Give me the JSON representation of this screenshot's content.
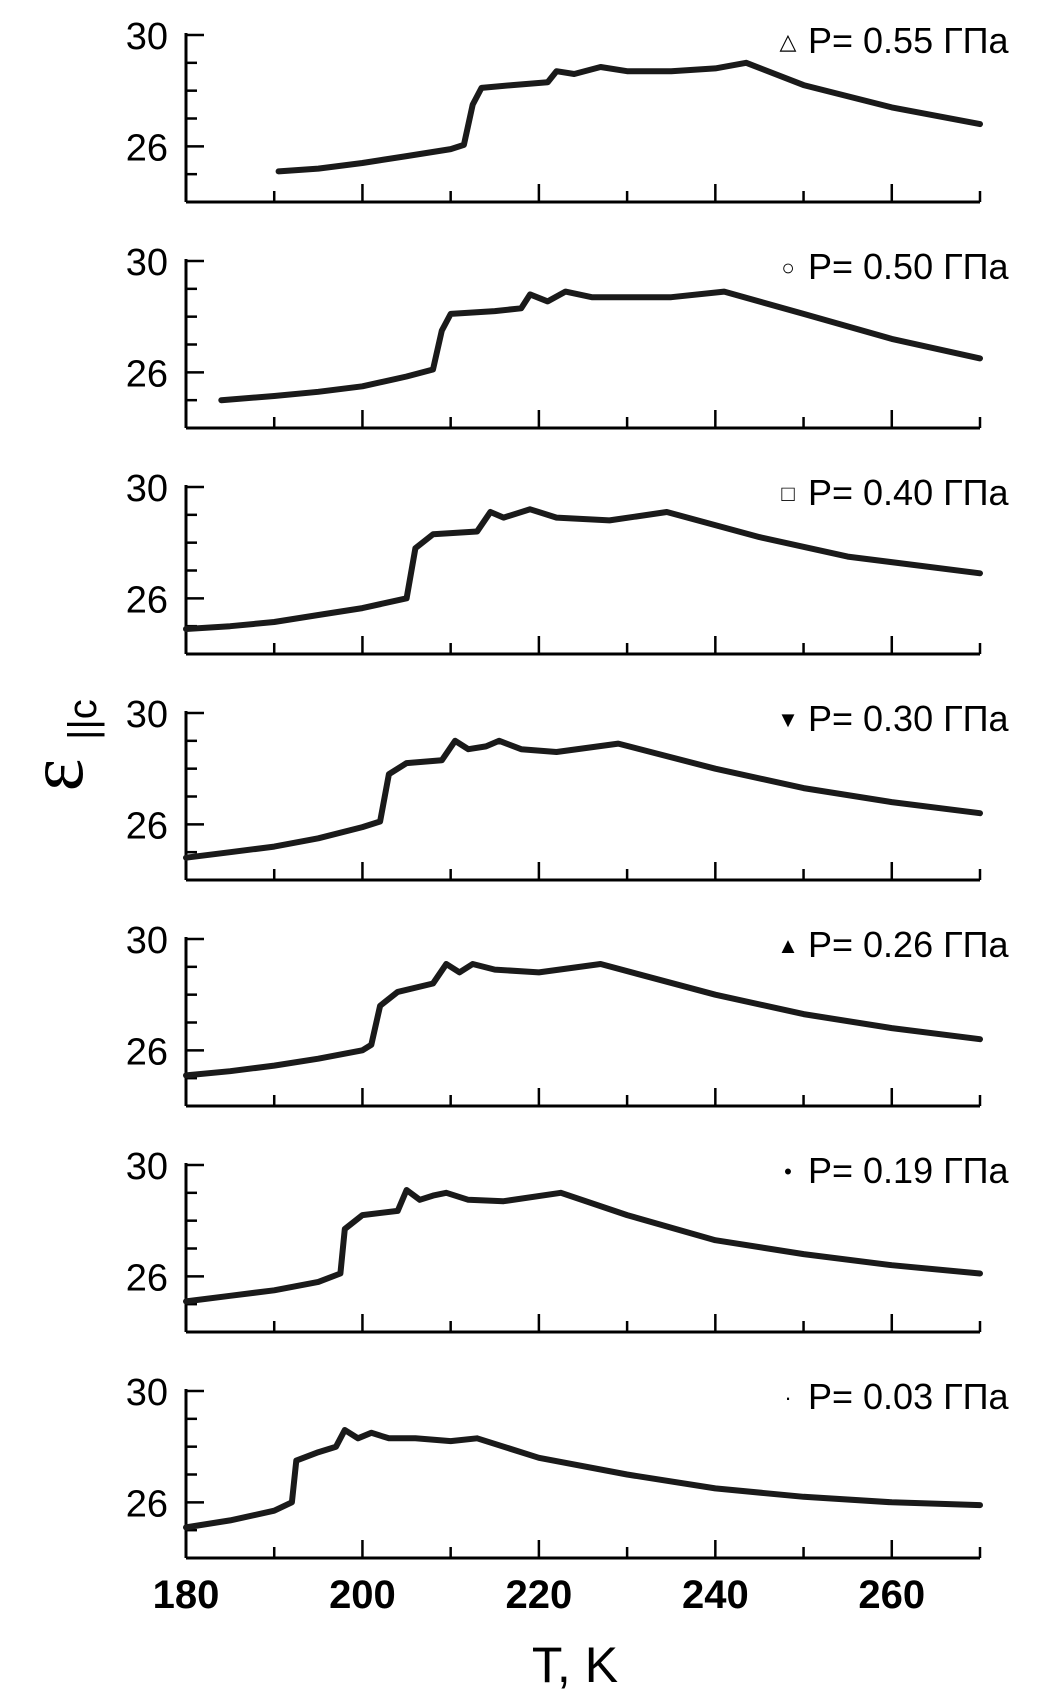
{
  "chart_data": {
    "type": "line",
    "xlabel": "T, K",
    "ylabel": "ε",
    "ylabel_subscript": "||c",
    "xlim": [
      180,
      270
    ],
    "ylim": [
      24,
      30
    ],
    "x_ticks": [
      180,
      200,
      220,
      240,
      260
    ],
    "y_ticks": [
      26,
      30
    ],
    "grid": false,
    "legend_placement": "top-right of each panel",
    "panels": [
      {
        "name": "P= 0.55 ГПа",
        "marker": "△",
        "points": [
          [
            190.5,
            25.1
          ],
          [
            195,
            25.2
          ],
          [
            200,
            25.4
          ],
          [
            205,
            25.65
          ],
          [
            210,
            25.9
          ],
          [
            211.5,
            26.05
          ],
          [
            212.5,
            27.5
          ],
          [
            213.5,
            28.1
          ],
          [
            217,
            28.2
          ],
          [
            221,
            28.3
          ],
          [
            222,
            28.7
          ],
          [
            224,
            28.6
          ],
          [
            227,
            28.85
          ],
          [
            230,
            28.7
          ],
          [
            235,
            28.7
          ],
          [
            240,
            28.8
          ],
          [
            243.5,
            29.0
          ],
          [
            250,
            28.2
          ],
          [
            260,
            27.4
          ],
          [
            270,
            26.8
          ]
        ]
      },
      {
        "name": "P= 0.50 ГПа",
        "marker": "○",
        "points": [
          [
            184,
            25.0
          ],
          [
            190,
            25.15
          ],
          [
            195,
            25.3
          ],
          [
            200,
            25.5
          ],
          [
            205,
            25.85
          ],
          [
            208,
            26.1
          ],
          [
            209,
            27.5
          ],
          [
            210,
            28.1
          ],
          [
            215,
            28.2
          ],
          [
            218,
            28.3
          ],
          [
            219,
            28.8
          ],
          [
            221,
            28.55
          ],
          [
            223,
            28.9
          ],
          [
            226,
            28.7
          ],
          [
            230,
            28.7
          ],
          [
            235,
            28.7
          ],
          [
            241,
            28.9
          ],
          [
            250,
            28.1
          ],
          [
            260,
            27.2
          ],
          [
            270,
            26.5
          ]
        ]
      },
      {
        "name": "P= 0.40 ГПа",
        "marker": "□",
        "points": [
          [
            180,
            24.9
          ],
          [
            185,
            25.0
          ],
          [
            190,
            25.15
          ],
          [
            195,
            25.4
          ],
          [
            200,
            25.65
          ],
          [
            205,
            26.0
          ],
          [
            206,
            27.8
          ],
          [
            208,
            28.3
          ],
          [
            213,
            28.4
          ],
          [
            214.5,
            29.1
          ],
          [
            216,
            28.9
          ],
          [
            219,
            29.2
          ],
          [
            222,
            28.9
          ],
          [
            228,
            28.8
          ],
          [
            234.5,
            29.1
          ],
          [
            245,
            28.2
          ],
          [
            255,
            27.5
          ],
          [
            270,
            26.9
          ]
        ]
      },
      {
        "name": "P= 0.30 ГПа",
        "marker": "▼",
        "points": [
          [
            180,
            24.8
          ],
          [
            185,
            25.0
          ],
          [
            190,
            25.2
          ],
          [
            195,
            25.5
          ],
          [
            200,
            25.9
          ],
          [
            202,
            26.1
          ],
          [
            203,
            27.8
          ],
          [
            205,
            28.2
          ],
          [
            209,
            28.3
          ],
          [
            210.5,
            29.0
          ],
          [
            212,
            28.7
          ],
          [
            214,
            28.8
          ],
          [
            215.5,
            29.0
          ],
          [
            218,
            28.7
          ],
          [
            222,
            28.6
          ],
          [
            229,
            28.9
          ],
          [
            240,
            28.0
          ],
          [
            250,
            27.3
          ],
          [
            260,
            26.8
          ],
          [
            270,
            26.4
          ]
        ]
      },
      {
        "name": "P= 0.26 ГПа",
        "marker": "▲",
        "points": [
          [
            180,
            25.1
          ],
          [
            185,
            25.25
          ],
          [
            190,
            25.45
          ],
          [
            195,
            25.7
          ],
          [
            200,
            26.0
          ],
          [
            201,
            26.2
          ],
          [
            202,
            27.6
          ],
          [
            204,
            28.1
          ],
          [
            208,
            28.4
          ],
          [
            209.5,
            29.1
          ],
          [
            211,
            28.8
          ],
          [
            212.5,
            29.1
          ],
          [
            215,
            28.9
          ],
          [
            220,
            28.8
          ],
          [
            227,
            29.1
          ],
          [
            240,
            28.0
          ],
          [
            250,
            27.3
          ],
          [
            260,
            26.8
          ],
          [
            270,
            26.4
          ]
        ]
      },
      {
        "name": "P= 0.19 ГПа",
        "marker": "•",
        "points": [
          [
            180,
            25.1
          ],
          [
            185,
            25.3
          ],
          [
            190,
            25.5
          ],
          [
            195,
            25.8
          ],
          [
            197.5,
            26.1
          ],
          [
            198,
            27.7
          ],
          [
            200,
            28.2
          ],
          [
            204,
            28.35
          ],
          [
            205,
            29.1
          ],
          [
            206.5,
            28.75
          ],
          [
            208,
            28.9
          ],
          [
            209.5,
            29.0
          ],
          [
            212,
            28.75
          ],
          [
            216,
            28.7
          ],
          [
            222.5,
            29.0
          ],
          [
            230,
            28.2
          ],
          [
            240,
            27.3
          ],
          [
            250,
            26.8
          ],
          [
            260,
            26.4
          ],
          [
            270,
            26.1
          ]
        ]
      },
      {
        "name": "P= 0.03 ГПа",
        "marker": "·",
        "points": [
          [
            180,
            25.1
          ],
          [
            185,
            25.35
          ],
          [
            190,
            25.7
          ],
          [
            192,
            26.0
          ],
          [
            192.5,
            27.5
          ],
          [
            195,
            27.8
          ],
          [
            197,
            28.0
          ],
          [
            198,
            28.6
          ],
          [
            199.5,
            28.3
          ],
          [
            201,
            28.5
          ],
          [
            203,
            28.3
          ],
          [
            206,
            28.3
          ],
          [
            210,
            28.2
          ],
          [
            213,
            28.3
          ],
          [
            220,
            27.6
          ],
          [
            230,
            27.0
          ],
          [
            240,
            26.5
          ],
          [
            250,
            26.2
          ],
          [
            260,
            26.0
          ],
          [
            270,
            25.9
          ]
        ]
      }
    ]
  }
}
